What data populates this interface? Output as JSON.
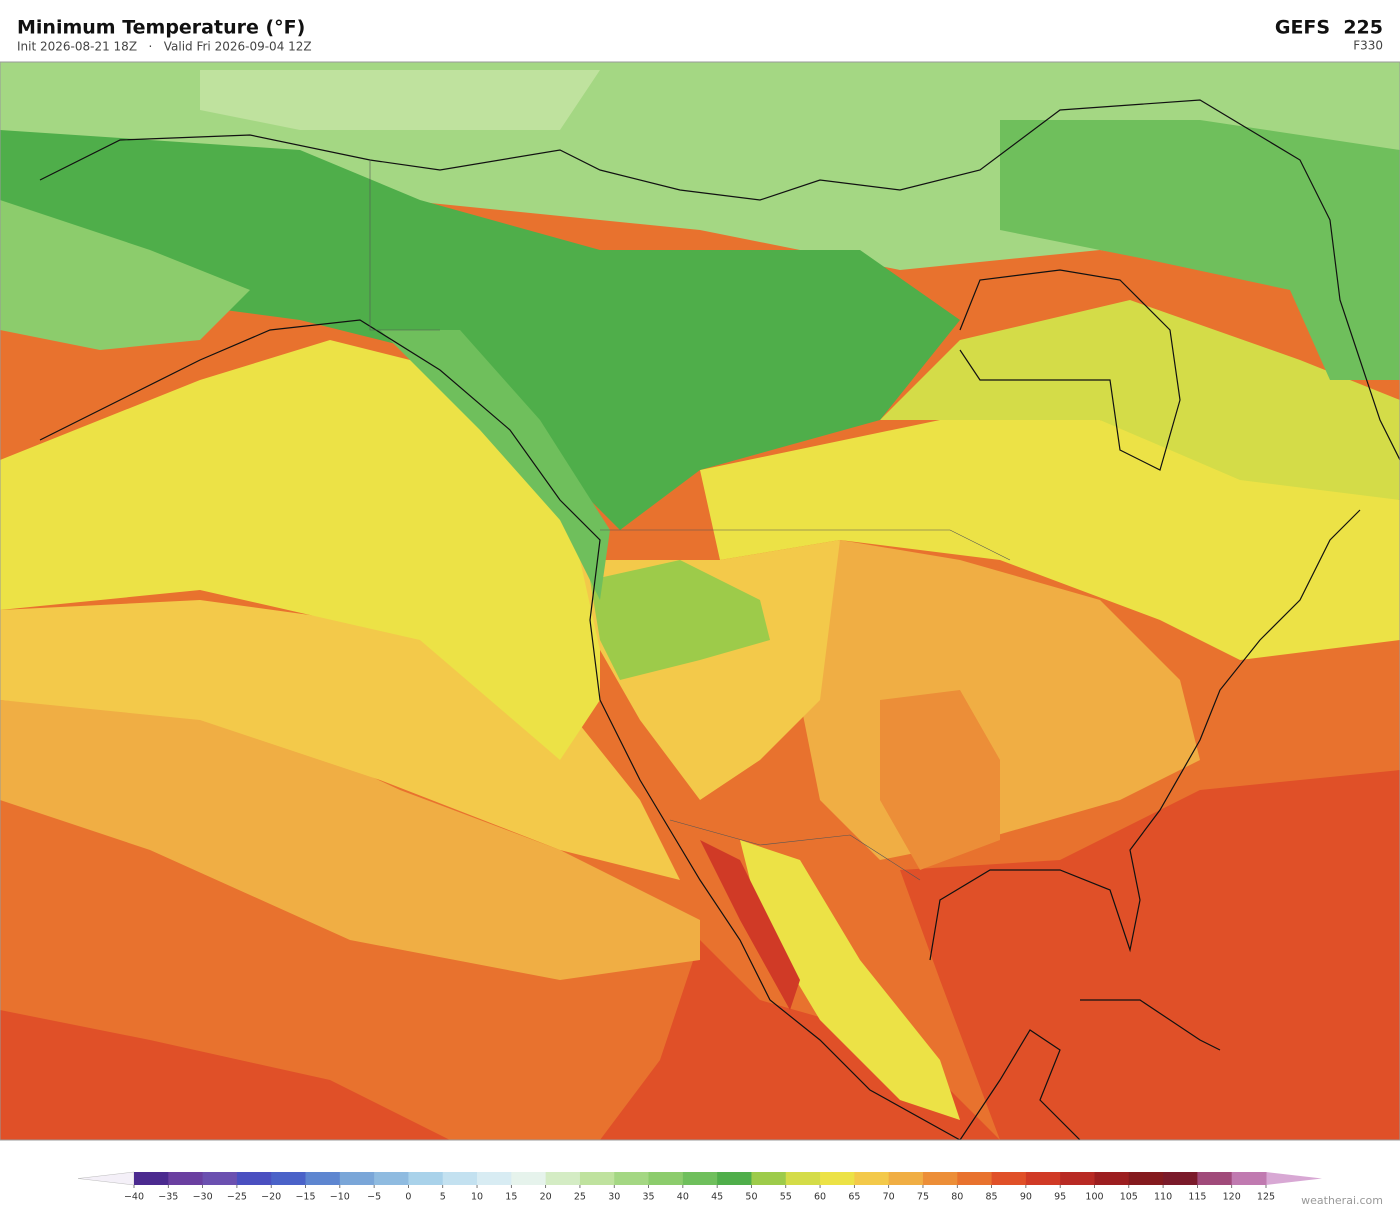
{
  "header": {
    "title": "Minimum Temperature  (°F)",
    "subtitle": "Init 2026-08-21 18Z   ·   Valid Fri 2026-09-04 12Z",
    "model": "GEFS  225",
    "forecast": "F330"
  },
  "colorbar": {
    "ticks": [
      {
        "value": -40,
        "label": "−40"
      },
      {
        "value": -35,
        "label": "−35"
      },
      {
        "value": -30,
        "label": "−30"
      },
      {
        "value": -25,
        "label": "−25"
      },
      {
        "value": -20,
        "label": "−20"
      },
      {
        "value": -15,
        "label": "−15"
      },
      {
        "value": -10,
        "label": "−10"
      },
      {
        "value": -5,
        "label": "−5"
      },
      0,
      5,
      10,
      15,
      20,
      25,
      30,
      35,
      40,
      45,
      50,
      55,
      60,
      65,
      70,
      75,
      80,
      85,
      90,
      95,
      100,
      105,
      110,
      115,
      120,
      125
    ],
    "colors": [
      "#4b2a8f",
      "#6a3fa0",
      "#6b50b0",
      "#4a4fc0",
      "#4a62c8",
      "#5e86d0",
      "#7aa6d8",
      "#8fbbe0",
      "#a9d2ea",
      "#c3e1f0",
      "#d8ecf3",
      "#e6f3ec",
      "#d4ecc4",
      "#bfe29e",
      "#a4d783",
      "#8ccc6c",
      "#6fbf5c",
      "#4fae4a",
      "#9dcb4a",
      "#d4dc48",
      "#ece246",
      "#f3c94a",
      "#f0ae44",
      "#ec8e38",
      "#e8722e",
      "#e05028",
      "#d03a26",
      "#b82a24",
      "#9c1e20",
      "#841a1e",
      "#7a1a2a",
      "#a04a7a",
      "#c07ab0"
    ],
    "under_color": "#f4f0f8",
    "over_color": "#d8a8d4"
  },
  "footer": {
    "credit": "weatherai.com"
  }
}
